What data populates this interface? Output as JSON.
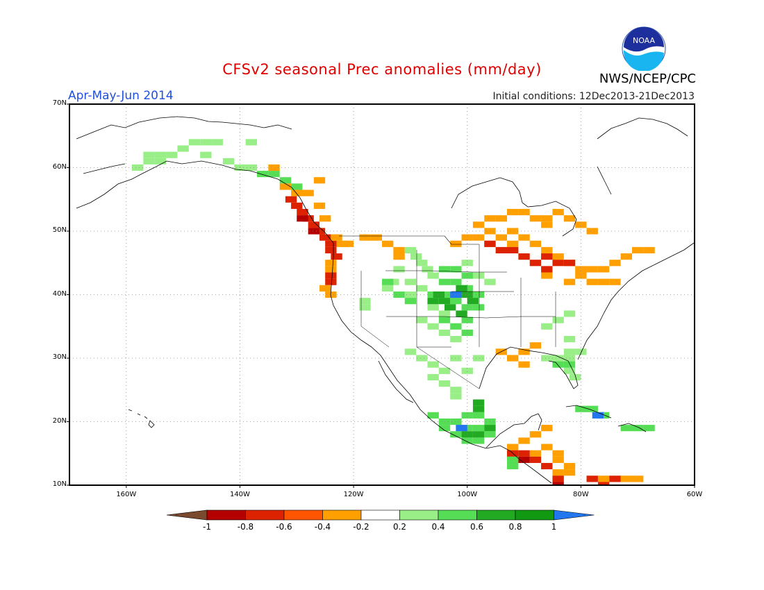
{
  "title": "CFSv2 seasonal Prec anomalies (mm/day)",
  "period": "Apr-May-Jun 2014",
  "initial_conditions": "Initial conditions: 12Dec2013-21Dec2013",
  "agency": "NWS/NCEP/CPC",
  "logo_text": "NOAA",
  "lat_labels": [
    "70N",
    "60N",
    "50N",
    "40N",
    "30N",
    "20N",
    "10N"
  ],
  "lon_labels": [
    "160W",
    "140W",
    "120W",
    "100W",
    "80W",
    "60W"
  ],
  "colorbar": {
    "labels": [
      "-1",
      "-0.8",
      "-0.6",
      "-0.4",
      "-0.2",
      "0.2",
      "0.4",
      "0.6",
      "0.8",
      "1"
    ],
    "colors": [
      "#7a4a2e",
      "#b40000",
      "#dd2200",
      "#ff5500",
      "#ff9f00",
      "#ffffff",
      "#99ee88",
      "#55dd55",
      "#22aa22",
      "#119911",
      "#2277ee"
    ]
  },
  "map": {
    "extent": {
      "lon_min": -170,
      "lon_max": -60,
      "lat_min": 10,
      "lat_max": 70
    },
    "grid": true,
    "anomaly_regions": [
      {
        "name": "alaska-north-wet",
        "color": "#99ee88",
        "cells": [
          [
            -148,
            64
          ],
          [
            -146,
            64
          ],
          [
            -144,
            64
          ],
          [
            -150,
            63
          ],
          [
            -152,
            62
          ],
          [
            -154,
            62
          ],
          [
            -156,
            62
          ],
          [
            -146,
            62
          ],
          [
            -154,
            61
          ],
          [
            -156,
            61
          ],
          [
            -158,
            60
          ],
          [
            -140,
            60
          ],
          [
            -138,
            60
          ],
          [
            -142,
            61
          ],
          [
            -138,
            64
          ]
        ]
      },
      {
        "name": "alaska-panhandle-wet",
        "color": "#55dd55",
        "cells": [
          [
            -136,
            59
          ],
          [
            -134,
            59
          ],
          [
            -132,
            58
          ],
          [
            -130,
            57
          ]
        ]
      },
      {
        "name": "pacific-nw-dry",
        "color": "#dd2200",
        "cells": [
          [
            -131,
            55
          ],
          [
            -130,
            54
          ],
          [
            -129,
            53
          ],
          [
            -128,
            52
          ],
          [
            -127,
            51
          ],
          [
            -126,
            50
          ],
          [
            -125,
            49
          ],
          [
            -124,
            48
          ],
          [
            -124,
            47
          ],
          [
            -123,
            46
          ],
          [
            -124,
            43
          ],
          [
            -124,
            42
          ]
        ]
      },
      {
        "name": "pacific-nw-dry-2",
        "color": "#b40000",
        "cells": [
          [
            -129,
            52
          ],
          [
            -127,
            50
          ]
        ]
      },
      {
        "name": "west-coast-dry",
        "color": "#ff9f00",
        "cells": [
          [
            -130,
            56
          ],
          [
            -132,
            57
          ],
          [
            -128,
            56
          ],
          [
            -126,
            54
          ],
          [
            -125,
            52
          ],
          [
            -123,
            49
          ],
          [
            -122,
            48
          ],
          [
            -121,
            48
          ],
          [
            -118,
            49
          ],
          [
            -116,
            49
          ],
          [
            -114,
            48
          ],
          [
            -124,
            45
          ],
          [
            -124,
            44
          ],
          [
            -125,
            41
          ],
          [
            -124,
            40
          ],
          [
            -112,
            47
          ],
          [
            -112,
            46
          ],
          [
            -134,
            60
          ],
          [
            -126,
            58
          ]
        ]
      },
      {
        "name": "central-plains-wet",
        "color": "#99ee88",
        "cells": [
          [
            -110,
            47
          ],
          [
            -109,
            46
          ],
          [
            -108,
            45
          ],
          [
            -107,
            44
          ],
          [
            -106,
            43
          ],
          [
            -112,
            44
          ],
          [
            -113,
            42
          ],
          [
            -114,
            41
          ],
          [
            -110,
            42
          ],
          [
            -108,
            41
          ],
          [
            -110,
            40
          ],
          [
            -106,
            38
          ],
          [
            -104,
            37
          ],
          [
            -108,
            36
          ],
          [
            -106,
            35
          ],
          [
            -104,
            34
          ],
          [
            -102,
            33
          ],
          [
            -100,
            45
          ],
          [
            -98,
            43
          ],
          [
            -96,
            42
          ],
          [
            -118,
            39
          ],
          [
            -118,
            38
          ],
          [
            -110,
            31
          ],
          [
            -108,
            30
          ],
          [
            -106,
            29
          ],
          [
            -104,
            28
          ],
          [
            -106,
            27
          ],
          [
            -104,
            26
          ],
          [
            -102,
            25
          ],
          [
            -102,
            24
          ],
          [
            -100,
            28
          ],
          [
            -98,
            30
          ],
          [
            -102,
            30
          ]
        ]
      },
      {
        "name": "central-plains-wet-2",
        "color": "#55dd55",
        "cells": [
          [
            -104,
            42
          ],
          [
            -102,
            42
          ],
          [
            -100,
            41
          ],
          [
            -98,
            40
          ],
          [
            -104,
            40
          ],
          [
            -106,
            40
          ],
          [
            -102,
            39
          ],
          [
            -100,
            38
          ],
          [
            -98,
            38
          ],
          [
            -100,
            43
          ],
          [
            -102,
            44
          ],
          [
            -104,
            44
          ],
          [
            -114,
            42
          ],
          [
            -112,
            40
          ],
          [
            -110,
            39
          ],
          [
            -100,
            36
          ],
          [
            -104,
            36
          ],
          [
            -102,
            35
          ],
          [
            -100,
            34
          ]
        ]
      },
      {
        "name": "central-plains-wet-3",
        "color": "#22aa22",
        "cells": [
          [
            -104,
            39
          ],
          [
            -102,
            40
          ],
          [
            -101,
            41
          ],
          [
            -100,
            40
          ],
          [
            -99,
            39
          ],
          [
            -103,
            38
          ],
          [
            -101,
            37
          ],
          [
            -105,
            40
          ],
          [
            -106,
            39
          ]
        ]
      },
      {
        "name": "colorado-peak",
        "color": "#2277ee",
        "cells": [
          [
            -102,
            40
          ]
        ]
      },
      {
        "name": "great-lakes-dry",
        "color": "#ff9f00",
        "cells": [
          [
            -98,
            51
          ],
          [
            -96,
            52
          ],
          [
            -94,
            52
          ],
          [
            -92,
            53
          ],
          [
            -90,
            53
          ],
          [
            -88,
            52
          ],
          [
            -86,
            52
          ],
          [
            -84,
            53
          ],
          [
            -82,
            52
          ],
          [
            -80,
            51
          ],
          [
            -78,
            50
          ],
          [
            -92,
            50
          ],
          [
            -90,
            49
          ],
          [
            -88,
            48
          ],
          [
            -86,
            47
          ],
          [
            -84,
            46
          ],
          [
            -82,
            45
          ],
          [
            -80,
            44
          ],
          [
            -78,
            44
          ],
          [
            -76,
            44
          ],
          [
            -74,
            45
          ],
          [
            -72,
            46
          ],
          [
            -70,
            47
          ],
          [
            -68,
            47
          ],
          [
            -80,
            43
          ],
          [
            -82,
            42
          ],
          [
            -78,
            42
          ],
          [
            -76,
            42
          ],
          [
            -74,
            42
          ],
          [
            -86,
            43
          ],
          [
            -96,
            48
          ],
          [
            -92,
            48
          ],
          [
            -94,
            49
          ],
          [
            -100,
            49
          ],
          [
            -102,
            48
          ],
          [
            -98,
            49
          ],
          [
            -96,
            50
          ],
          [
            -86,
            51
          ]
        ]
      },
      {
        "name": "great-lakes-dry-2",
        "color": "#dd2200",
        "cells": [
          [
            -96,
            48
          ],
          [
            -94,
            47
          ],
          [
            -92,
            47
          ],
          [
            -90,
            46
          ],
          [
            -88,
            45
          ],
          [
            -86,
            46
          ],
          [
            -84,
            45
          ],
          [
            -82,
            45
          ],
          [
            -86,
            44
          ]
        ]
      },
      {
        "name": "gulf-coast-dry",
        "color": "#ff9f00",
        "cells": [
          [
            -94,
            31
          ],
          [
            -92,
            30
          ],
          [
            -90,
            31
          ],
          [
            -88,
            32
          ],
          [
            -90,
            29
          ]
        ]
      },
      {
        "name": "florida-wet",
        "color": "#99ee88",
        "cells": [
          [
            -82,
            28
          ],
          [
            -81,
            27
          ],
          [
            -82,
            30
          ],
          [
            -84,
            30
          ],
          [
            -86,
            30
          ],
          [
            -80,
            31
          ],
          [
            -82,
            31
          ],
          [
            -82,
            33
          ],
          [
            -84,
            36
          ],
          [
            -86,
            35
          ],
          [
            -82,
            37
          ]
        ]
      },
      {
        "name": "florida-wet-2",
        "color": "#55dd55",
        "cells": [
          [
            -84,
            29
          ],
          [
            -82,
            29
          ]
        ]
      },
      {
        "name": "mexico-south-wet",
        "color": "#55dd55",
        "cells": [
          [
            -106,
            21
          ],
          [
            -104,
            20
          ],
          [
            -102,
            20
          ],
          [
            -100,
            19
          ],
          [
            -98,
            19
          ],
          [
            -96,
            18
          ],
          [
            -104,
            19
          ],
          [
            -100,
            21
          ],
          [
            -98,
            21
          ],
          [
            -96,
            20
          ],
          [
            -102,
            18
          ],
          [
            -98,
            17
          ],
          [
            -100,
            17
          ]
        ]
      },
      {
        "name": "mexico-south-wet-2",
        "color": "#22aa22",
        "cells": [
          [
            -100,
            18
          ],
          [
            -98,
            18
          ],
          [
            -96,
            19
          ],
          [
            -98,
            22
          ],
          [
            -98,
            23
          ]
        ]
      },
      {
        "name": "mexico-south-peak",
        "color": "#2277ee",
        "cells": [
          [
            -101,
            19
          ]
        ]
      },
      {
        "name": "central-america-dry",
        "color": "#ff9f00",
        "cells": [
          [
            -92,
            16
          ],
          [
            -90,
            17
          ],
          [
            -88,
            18
          ],
          [
            -86,
            16
          ],
          [
            -84,
            15
          ],
          [
            -82,
            13
          ],
          [
            -84,
            12
          ],
          [
            -88,
            15
          ],
          [
            -90,
            14
          ],
          [
            -86,
            19
          ],
          [
            -84,
            14
          ],
          [
            -82,
            12
          ],
          [
            -76,
            11
          ],
          [
            -72,
            11
          ],
          [
            -70,
            11
          ]
        ]
      },
      {
        "name": "central-america-dry-2",
        "color": "#dd2200",
        "cells": [
          [
            -92,
            15
          ],
          [
            -90,
            15
          ],
          [
            -88,
            14
          ],
          [
            -86,
            13
          ],
          [
            -84,
            11
          ],
          [
            -76,
            10
          ],
          [
            -74,
            11
          ],
          [
            -78,
            11
          ]
        ]
      },
      {
        "name": "central-america-dry-3",
        "color": "#b40000",
        "cells": [
          [
            -90,
            14
          ],
          [
            -84,
            10
          ],
          [
            -92,
            14
          ]
        ]
      },
      {
        "name": "caribbean-wet",
        "color": "#55dd55",
        "cells": [
          [
            -80,
            22
          ],
          [
            -78,
            22
          ],
          [
            -76,
            21
          ],
          [
            -72,
            19
          ],
          [
            -70,
            19
          ],
          [
            -68,
            19
          ],
          [
            -92,
            14
          ],
          [
            -92,
            13
          ]
        ]
      },
      {
        "name": "caribbean-peak",
        "color": "#2277ee",
        "cells": [
          [
            -77,
            21
          ]
        ]
      }
    ]
  }
}
